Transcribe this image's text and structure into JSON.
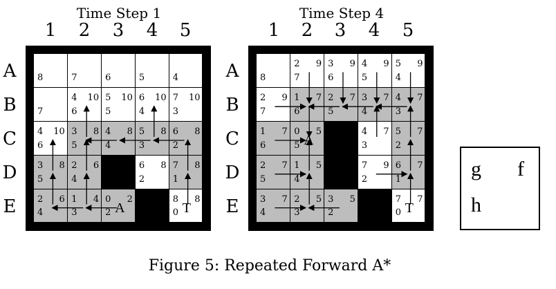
{
  "panels": [
    {
      "title": "Time Step 1",
      "columns": [
        "1",
        "2",
        "3",
        "4",
        "5"
      ],
      "rows": [
        "A",
        "B",
        "C",
        "D",
        "E"
      ],
      "cells": [
        [
          {
            "state": "white",
            "g": "",
            "h": "8"
          },
          {
            "state": "white",
            "g": "",
            "h": "7"
          },
          {
            "state": "white",
            "g": "",
            "h": "6"
          },
          {
            "state": "white",
            "g": "",
            "h": "5"
          },
          {
            "state": "white",
            "g": "",
            "h": "4"
          }
        ],
        [
          {
            "state": "white",
            "g": "",
            "h": "7"
          },
          {
            "state": "white",
            "g": "4",
            "f": "10",
            "h": "6"
          },
          {
            "state": "white",
            "g": "5",
            "f": "10",
            "h": "5"
          },
          {
            "state": "white",
            "g": "6",
            "f": "10",
            "h": "4"
          },
          {
            "state": "white",
            "g": "7",
            "f": "10",
            "h": "3"
          }
        ],
        [
          {
            "state": "white",
            "g": "4",
            "f": "10",
            "h": "6"
          },
          {
            "state": "gray",
            "g": "3",
            "f": "8",
            "h": "5"
          },
          {
            "state": "gray",
            "g": "4",
            "f": "8",
            "h": "4"
          },
          {
            "state": "gray",
            "g": "5",
            "f": "8",
            "h": "3"
          },
          {
            "state": "gray",
            "g": "6",
            "f": "8",
            "h": "2"
          }
        ],
        [
          {
            "state": "gray",
            "g": "3",
            "f": "8",
            "h": "5"
          },
          {
            "state": "gray",
            "g": "2",
            "f": "6",
            "h": "4"
          },
          {
            "state": "black"
          },
          {
            "state": "white",
            "g": "6",
            "f": "8",
            "h": "2"
          },
          {
            "state": "gray",
            "g": "7",
            "f": "8",
            "h": "1"
          }
        ],
        [
          {
            "state": "gray",
            "g": "2",
            "f": "6",
            "h": "4"
          },
          {
            "state": "gray",
            "g": "1",
            "f": "4",
            "h": "3"
          },
          {
            "state": "gray",
            "g": "0",
            "f": "2",
            "h": "2",
            "marker": "A"
          },
          {
            "state": "black"
          },
          {
            "state": "white",
            "g": "8",
            "f": "8",
            "h": "0",
            "marker": "T"
          }
        ]
      ],
      "arrows": [
        {
          "from": [
            4,
            2
          ],
          "to": [
            4,
            1
          ]
        },
        {
          "from": [
            4,
            1
          ],
          "to": [
            4,
            0
          ]
        },
        {
          "from": [
            4,
            1
          ],
          "to": [
            3,
            1
          ]
        },
        {
          "from": [
            4,
            0
          ],
          "to": [
            3,
            0
          ]
        },
        {
          "from": [
            3,
            0
          ],
          "to": [
            2,
            0
          ]
        },
        {
          "from": [
            3,
            1
          ],
          "to": [
            2,
            1
          ]
        },
        {
          "from": [
            2,
            1
          ],
          "to": [
            1,
            1
          ]
        },
        {
          "from": [
            2,
            2
          ],
          "to": [
            2,
            1
          ]
        },
        {
          "from": [
            2,
            3
          ],
          "to": [
            2,
            2
          ]
        },
        {
          "from": [
            2,
            3
          ],
          "to": [
            1,
            3
          ]
        },
        {
          "from": [
            2,
            4
          ],
          "to": [
            2,
            3
          ]
        },
        {
          "from": [
            3,
            4
          ],
          "to": [
            2,
            4
          ]
        },
        {
          "from": [
            4,
            4
          ],
          "to": [
            3,
            4
          ]
        }
      ]
    },
    {
      "title": "Time Step 4",
      "columns": [
        "1",
        "2",
        "3",
        "4",
        "5"
      ],
      "rows": [
        "A",
        "B",
        "C",
        "D",
        "E"
      ],
      "cells": [
        [
          {
            "state": "white",
            "g": "",
            "h": "8"
          },
          {
            "state": "white",
            "g": "2",
            "f": "9",
            "h": "7"
          },
          {
            "state": "white",
            "g": "3",
            "f": "9",
            "h": "6"
          },
          {
            "state": "white",
            "g": "4",
            "f": "9",
            "h": "5"
          },
          {
            "state": "white",
            "g": "5",
            "f": "9",
            "h": "4"
          }
        ],
        [
          {
            "state": "white",
            "g": "2",
            "f": "9",
            "h": "7"
          },
          {
            "state": "gray",
            "g": "1",
            "f": "7",
            "h": "6"
          },
          {
            "state": "gray",
            "g": "2",
            "f": "7",
            "h": "5"
          },
          {
            "state": "gray",
            "g": "3",
            "f": "7",
            "h": "4"
          },
          {
            "state": "gray",
            "g": "4",
            "f": "7",
            "h": "3"
          }
        ],
        [
          {
            "state": "gray",
            "g": "1",
            "f": "7",
            "h": "6"
          },
          {
            "state": "gray",
            "g": "0",
            "f": "5",
            "h": "5",
            "marker": "A"
          },
          {
            "state": "black"
          },
          {
            "state": "white",
            "g": "4",
            "f": "7",
            "h": "3"
          },
          {
            "state": "gray",
            "g": "5",
            "f": "7",
            "h": "2"
          }
        ],
        [
          {
            "state": "gray",
            "g": "2",
            "f": "7",
            "h": "5"
          },
          {
            "state": "gray",
            "g": "1",
            "f": "5",
            "h": "4"
          },
          {
            "state": "black"
          },
          {
            "state": "white",
            "g": "7",
            "f": "9",
            "h": "2"
          },
          {
            "state": "gray",
            "g": "6",
            "f": "7",
            "h": "1"
          }
        ],
        [
          {
            "state": "gray",
            "g": "3",
            "f": "7",
            "h": "4"
          },
          {
            "state": "gray",
            "g": "2",
            "f": "5",
            "h": "3"
          },
          {
            "state": "gray",
            "g": "3",
            "f": "5",
            "h": "2"
          },
          {
            "state": "black"
          },
          {
            "state": "white",
            "g": "7",
            "f": "7",
            "h": "0",
            "marker": "T"
          }
        ]
      ],
      "arrows": [
        {
          "from": [
            0,
            1
          ],
          "to": [
            1,
            1
          ]
        },
        {
          "from": [
            0,
            2
          ],
          "to": [
            1,
            2
          ]
        },
        {
          "from": [
            0,
            3
          ],
          "to": [
            1,
            3
          ]
        },
        {
          "from": [
            0,
            4
          ],
          "to": [
            1,
            4
          ]
        },
        {
          "from": [
            1,
            0
          ],
          "to": [
            1,
            1
          ]
        },
        {
          "from": [
            1,
            2
          ],
          "to": [
            1,
            1
          ]
        },
        {
          "from": [
            1,
            3
          ],
          "to": [
            1,
            2
          ]
        },
        {
          "from": [
            1,
            4
          ],
          "to": [
            1,
            3
          ]
        },
        {
          "from": [
            1,
            1
          ],
          "to": [
            2,
            1
          ]
        },
        {
          "from": [
            2,
            3
          ],
          "to": [
            1,
            3
          ]
        },
        {
          "from": [
            2,
            4
          ],
          "to": [
            1,
            4
          ]
        },
        {
          "from": [
            2,
            0
          ],
          "to": [
            2,
            1
          ]
        },
        {
          "from": [
            3,
            1
          ],
          "to": [
            2,
            1
          ]
        },
        {
          "from": [
            3,
            0
          ],
          "to": [
            3,
            1
          ]
        },
        {
          "from": [
            4,
            1
          ],
          "to": [
            3,
            1
          ]
        },
        {
          "from": [
            4,
            0
          ],
          "to": [
            4,
            1
          ]
        },
        {
          "from": [
            4,
            2
          ],
          "to": [
            4,
            1
          ]
        },
        {
          "from": [
            3,
            3
          ],
          "to": [
            3,
            4
          ]
        },
        {
          "from": [
            3,
            4
          ],
          "to": [
            2,
            4
          ]
        },
        {
          "from": [
            4,
            4
          ],
          "to": [
            3,
            4
          ]
        }
      ]
    }
  ],
  "legend": {
    "g": "g",
    "f": "f",
    "h": "h"
  },
  "caption": "Figure 5: Repeated Forward A*"
}
